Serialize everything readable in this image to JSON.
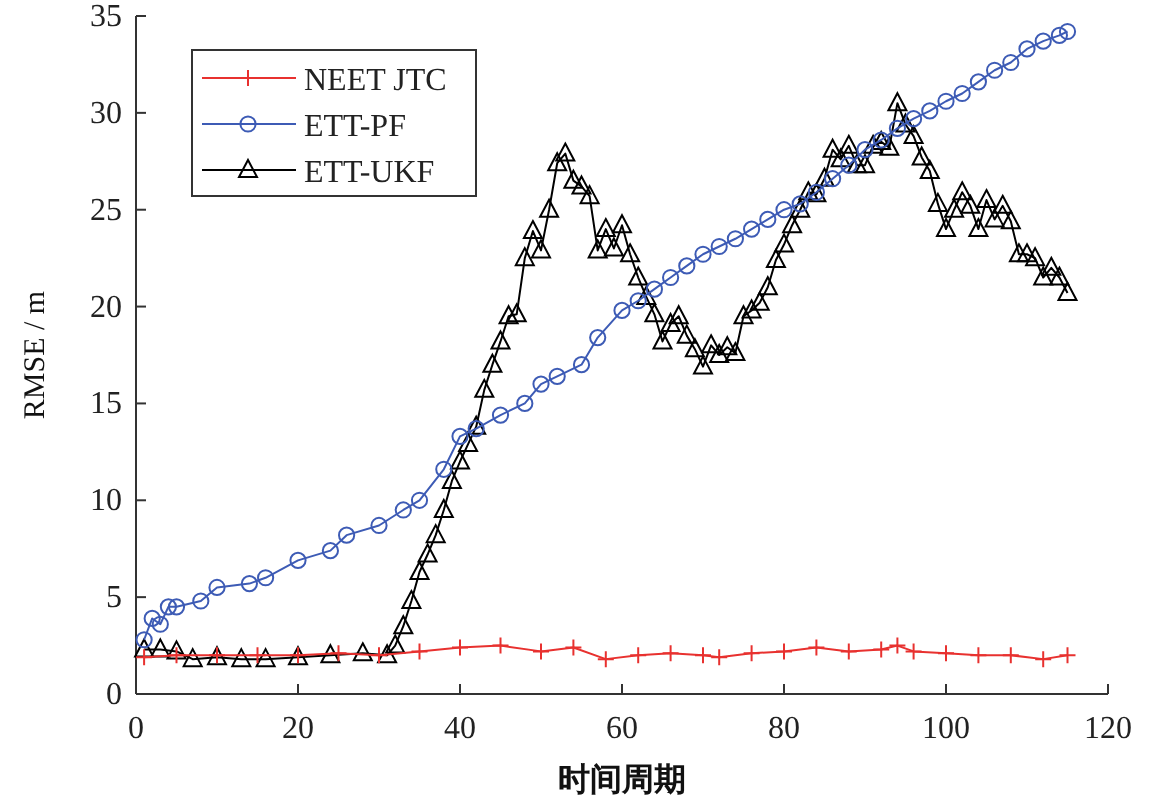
{
  "chart_data": {
    "type": "line",
    "xlabel": "时间周期",
    "ylabel": "RMSE / m",
    "xlim": [
      0,
      120
    ],
    "xticks": [
      0,
      20,
      40,
      60,
      80,
      100,
      120
    ],
    "ylim": [
      0,
      35
    ],
    "yticks": [
      0,
      5,
      10,
      15,
      20,
      25,
      30,
      35
    ],
    "grid": false,
    "legend": "top left",
    "series": [
      {
        "name": "NEET JTC",
        "color": "#e8312f",
        "marker": "cross",
        "x": [
          1,
          5,
          10,
          15,
          20,
          25,
          30,
          35,
          40,
          45,
          50,
          54,
          58,
          62,
          66,
          70,
          72,
          76,
          80,
          84,
          88,
          92,
          94,
          96,
          100,
          104,
          108,
          112,
          115
        ],
        "values": [
          1.9,
          2.0,
          2.0,
          2.0,
          2.0,
          2.1,
          2.0,
          2.2,
          2.4,
          2.5,
          2.2,
          2.4,
          1.8,
          2.0,
          2.1,
          2.0,
          1.9,
          2.1,
          2.2,
          2.4,
          2.2,
          2.3,
          2.5,
          2.2,
          2.1,
          2.0,
          2.0,
          1.8,
          2.0
        ]
      },
      {
        "name": "ETT-PF",
        "color": "#3d5bb5",
        "marker": "circle",
        "x": [
          1,
          2,
          3,
          4,
          5,
          8,
          10,
          14,
          16,
          20,
          24,
          26,
          30,
          33,
          35,
          38,
          40,
          42,
          45,
          48,
          50,
          52,
          55,
          57,
          60,
          62,
          64,
          66,
          68,
          70,
          72,
          74,
          76,
          78,
          80,
          82,
          84,
          86,
          88,
          90,
          92,
          94,
          96,
          98,
          100,
          102,
          104,
          106,
          108,
          110,
          112,
          114,
          115
        ],
        "values": [
          2.8,
          3.9,
          3.6,
          4.5,
          4.5,
          4.8,
          5.5,
          5.7,
          6.0,
          6.9,
          7.4,
          8.2,
          8.7,
          9.5,
          10.0,
          11.6,
          13.3,
          13.7,
          14.4,
          15.0,
          16.0,
          16.4,
          17.0,
          18.4,
          19.8,
          20.3,
          20.9,
          21.5,
          22.1,
          22.7,
          23.1,
          23.5,
          24.0,
          24.5,
          25.0,
          25.3,
          25.9,
          26.6,
          27.3,
          28.1,
          28.6,
          29.2,
          29.7,
          30.1,
          30.6,
          31.0,
          31.6,
          32.2,
          32.6,
          33.3,
          33.7,
          34.0,
          34.2
        ]
      },
      {
        "name": "ETT-UKF",
        "color": "#000000",
        "marker": "triangle",
        "x": [
          1,
          3,
          5,
          7,
          10,
          13,
          16,
          20,
          24,
          28,
          31,
          32,
          33,
          34,
          35,
          36,
          37,
          38,
          39,
          40,
          41,
          42,
          43,
          44,
          45,
          46,
          47,
          48,
          49,
          50,
          51,
          52,
          53,
          54,
          55,
          56,
          57,
          58,
          59,
          60,
          61,
          62,
          63,
          64,
          65,
          66,
          67,
          68,
          69,
          70,
          71,
          72,
          73,
          74,
          75,
          76,
          77,
          78,
          79,
          80,
          81,
          82,
          83,
          84,
          85,
          86,
          87,
          88,
          89,
          90,
          91,
          92,
          93,
          94,
          95,
          96,
          97,
          98,
          99,
          100,
          101,
          102,
          103,
          104,
          105,
          106,
          107,
          108,
          109,
          110,
          111,
          112,
          113,
          114,
          115
        ],
        "values": [
          2.3,
          2.3,
          2.2,
          1.8,
          1.9,
          1.8,
          1.8,
          1.9,
          2.0,
          2.1,
          2.0,
          2.5,
          3.5,
          4.8,
          6.3,
          7.2,
          8.2,
          9.5,
          11.0,
          12.0,
          12.9,
          13.8,
          15.7,
          17.0,
          18.2,
          19.5,
          19.6,
          22.5,
          23.9,
          22.9,
          25.0,
          27.4,
          27.9,
          26.5,
          26.2,
          25.7,
          22.9,
          24.0,
          23.0,
          24.2,
          22.7,
          21.5,
          20.5,
          19.6,
          18.2,
          19.1,
          19.5,
          18.5,
          17.8,
          16.9,
          18.0,
          17.5,
          17.9,
          17.6,
          19.5,
          19.8,
          20.2,
          21.0,
          22.4,
          23.2,
          24.2,
          25.0,
          25.9,
          25.8,
          26.6,
          28.1,
          27.6,
          28.3,
          27.3,
          27.3,
          28.3,
          28.5,
          28.2,
          30.5,
          29.4,
          28.8,
          27.7,
          27.0,
          25.3,
          24.0,
          25.0,
          25.9,
          25.2,
          24.0,
          25.5,
          24.5,
          25.2,
          24.4,
          22.7,
          22.7,
          22.5,
          21.5,
          22.0,
          21.5,
          20.7
        ]
      }
    ]
  }
}
